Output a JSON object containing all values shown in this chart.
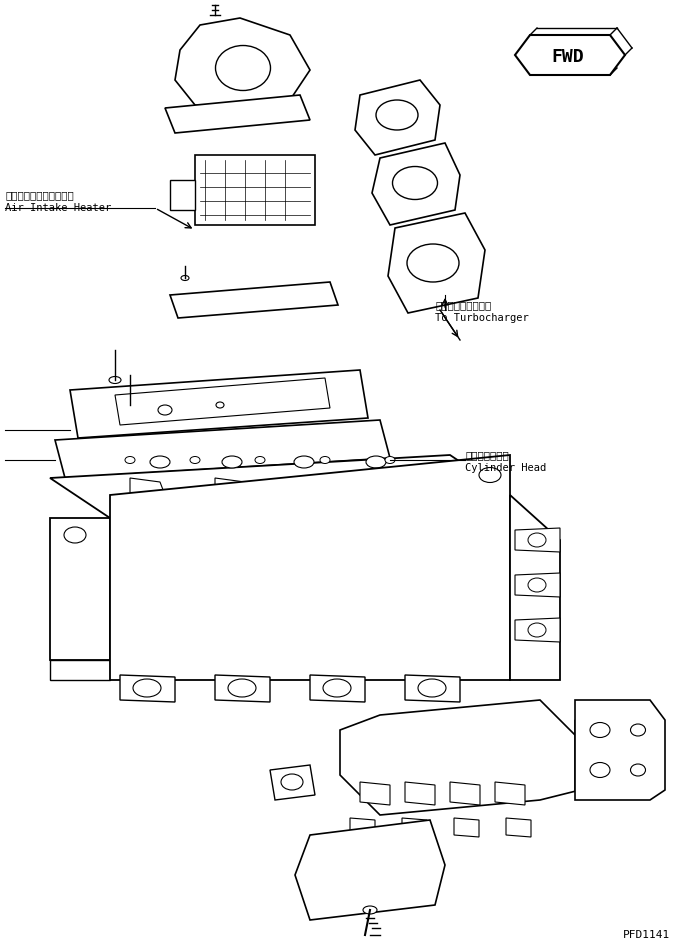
{
  "title": "",
  "bg_color": "#ffffff",
  "line_color": "#000000",
  "labels": {
    "air_intake_jp": "エアーインテークヒータ",
    "air_intake_en": "Air Intake Heater",
    "turbo_jp": "ターボチャージャヘ",
    "turbo_en": "To Turbocharger",
    "cylinder_jp": "シリンダヘッド",
    "cylinder_en": "Cylinder Head",
    "part_code": "PFD1141",
    "fwd": "FWD"
  },
  "fig_width": 6.8,
  "fig_height": 9.48,
  "dpi": 100
}
